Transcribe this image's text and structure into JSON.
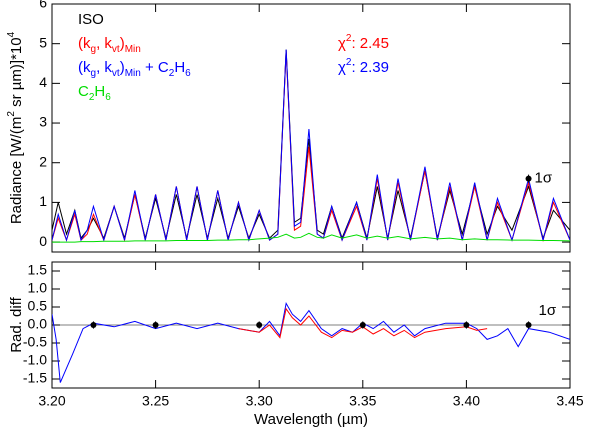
{
  "chart_data": [
    {
      "type": "line",
      "ylabel": [
        {
          "text": "Radiance [W/(m"
        },
        {
          "text": "2",
          "shift": "super"
        },
        {
          "text": " sr µm)]*10"
        },
        {
          "text": "4",
          "shift": "super"
        }
      ],
      "x": [
        3.2,
        3.203,
        3.207,
        3.211,
        3.214,
        3.217,
        3.22,
        3.225,
        3.23,
        3.235,
        3.24,
        3.245,
        3.25,
        3.255,
        3.26,
        3.265,
        3.27,
        3.275,
        3.28,
        3.285,
        3.29,
        3.295,
        3.3,
        3.305,
        3.309,
        3.313,
        3.317,
        3.32,
        3.324,
        3.328,
        3.331,
        3.335,
        3.34,
        3.347,
        3.352,
        3.357,
        3.362,
        3.367,
        3.373,
        3.38,
        3.386,
        3.392,
        3.398,
        3.404,
        3.41,
        3.415,
        3.422,
        3.43,
        3.437,
        3.442,
        3.45
      ],
      "series": [
        {
          "name": [
            {
              "text": "ISO"
            }
          ],
          "color": "#000000",
          "values": [
            0.3,
            1.0,
            0.2,
            0.8,
            0.1,
            0.3,
            0.6,
            0.1,
            0.9,
            0.1,
            1.2,
            0.1,
            1.1,
            0.1,
            1.2,
            0.1,
            1.2,
            0.1,
            1.1,
            0.1,
            0.9,
            0.1,
            0.7,
            0.1,
            0.3,
            4.85,
            0.5,
            0.6,
            2.6,
            0.3,
            0.2,
            0.9,
            0.1,
            1.0,
            0.1,
            1.4,
            0.1,
            1.3,
            0.1,
            1.8,
            0.1,
            1.3,
            0.2,
            1.4,
            0.2,
            0.9,
            0.3,
            1.4,
            0.1,
            0.8,
            0.3
          ]
        },
        {
          "name": [
            {
              "text": "(k"
            },
            {
              "text": "g",
              "shift": "sub"
            },
            {
              "text": ", k"
            },
            {
              "text": "vt",
              "shift": "sub"
            },
            {
              "text": ")"
            },
            {
              "text": "Min",
              "shift": "sub"
            }
          ],
          "color": "#ff0000",
          "chi2": 2.45,
          "values": [
            0.05,
            0.6,
            0.05,
            0.7,
            0.05,
            0.2,
            0.7,
            0.05,
            0.9,
            0.05,
            1.2,
            0.05,
            1.2,
            0.05,
            1.4,
            0.05,
            1.4,
            0.05,
            1.3,
            0.05,
            1.0,
            0.05,
            0.8,
            0.05,
            0.2,
            4.8,
            0.3,
            0.4,
            2.4,
            0.2,
            0.1,
            0.8,
            0.05,
            0.9,
            0.05,
            1.6,
            0.05,
            1.5,
            0.05,
            1.8,
            0.05,
            1.4,
            0.05,
            1.4,
            0.05,
            1.0,
            0.05,
            1.5,
            0.05,
            1.0,
            0.05
          ]
        },
        {
          "name": [
            {
              "text": "(k"
            },
            {
              "text": "g",
              "shift": "sub"
            },
            {
              "text": ", k"
            },
            {
              "text": "vt",
              "shift": "sub"
            },
            {
              "text": ")"
            },
            {
              "text": "Min",
              "shift": "sub"
            },
            {
              "text": " + C"
            },
            {
              "text": "2",
              "shift": "sub"
            },
            {
              "text": "H"
            },
            {
              "text": "6",
              "shift": "sub"
            }
          ],
          "color": "#0000ff",
          "chi2": 2.39,
          "values": [
            0.05,
            0.7,
            0.05,
            0.8,
            0.05,
            0.3,
            0.9,
            0.05,
            0.9,
            0.05,
            1.3,
            0.05,
            1.2,
            0.05,
            1.4,
            0.05,
            1.4,
            0.05,
            1.3,
            0.05,
            1.0,
            0.05,
            0.8,
            0.05,
            0.2,
            4.85,
            0.4,
            0.5,
            2.85,
            0.2,
            0.1,
            0.9,
            0.05,
            1.0,
            0.05,
            1.7,
            0.05,
            1.6,
            0.05,
            1.9,
            0.05,
            1.5,
            0.05,
            1.5,
            0.05,
            1.1,
            0.05,
            1.6,
            0.05,
            1.1,
            0.05
          ]
        },
        {
          "name": [
            {
              "text": "C"
            },
            {
              "text": "2",
              "shift": "sub"
            },
            {
              "text": "H"
            },
            {
              "text": "6",
              "shift": "sub"
            }
          ],
          "color": "#00dd00",
          "values": [
            0.0,
            0.0,
            0.0,
            0.0,
            0.01,
            0.01,
            0.01,
            0.02,
            0.02,
            0.02,
            0.03,
            0.03,
            0.03,
            0.03,
            0.04,
            0.04,
            0.04,
            0.04,
            0.05,
            0.05,
            0.06,
            0.06,
            0.08,
            0.1,
            0.12,
            0.2,
            0.1,
            0.12,
            0.22,
            0.12,
            0.1,
            0.18,
            0.1,
            0.18,
            0.1,
            0.15,
            0.1,
            0.14,
            0.08,
            0.12,
            0.08,
            0.1,
            0.06,
            0.08,
            0.06,
            0.06,
            0.05,
            0.05,
            0.04,
            0.04,
            0.03
          ]
        }
      ],
      "chi2_label": [
        {
          "text": "χ"
        },
        {
          "text": "2",
          "shift": "super"
        },
        {
          "text": ": "
        }
      ],
      "sigma": {
        "x": 3.43,
        "value": 1.6,
        "error": 0.1,
        "label": "1σ"
      },
      "xlim": [
        3.2,
        3.45
      ],
      "xticks": [
        {
          "value": 3.2,
          "label": "3.20"
        },
        3.25,
        {
          "value": 3.3,
          "label": "3.30"
        },
        3.35,
        {
          "value": 3.4,
          "label": "3.40"
        },
        3.45
      ],
      "ylim": [
        -0.25,
        6
      ],
      "yticks": [
        0,
        1,
        2,
        3,
        4,
        5,
        6
      ]
    },
    {
      "type": "line",
      "xlabel": "Wavelength (µm)",
      "ylabel": "Rad. diff",
      "x": [
        3.2,
        3.202,
        3.204,
        3.207,
        3.21,
        3.215,
        3.22,
        3.23,
        3.24,
        3.25,
        3.26,
        3.27,
        3.28,
        3.29,
        3.3,
        3.305,
        3.31,
        3.313,
        3.316,
        3.32,
        3.324,
        3.33,
        3.335,
        3.34,
        3.345,
        3.35,
        3.355,
        3.36,
        3.365,
        3.37,
        3.375,
        3.38,
        3.39,
        3.4,
        3.405,
        3.41,
        3.415,
        3.42,
        3.425,
        3.43,
        3.44,
        3.45
      ],
      "series": [
        {
          "color": "#0000ff",
          "values": [
            0.3,
            -0.4,
            -1.6,
            -1.2,
            -0.8,
            -0.1,
            0.05,
            -0.05,
            0.1,
            -0.1,
            0.05,
            -0.1,
            0.05,
            -0.1,
            -0.2,
            0.1,
            -0.3,
            0.6,
            0.3,
            0.1,
            0.4,
            -0.1,
            -0.3,
            -0.1,
            -0.2,
            0.05,
            -0.1,
            0.1,
            -0.2,
            0.0,
            -0.3,
            -0.1,
            0.05,
            0.05,
            -0.1,
            -0.4,
            -0.3,
            -0.1,
            -0.6,
            -0.1,
            -0.2,
            -0.4
          ]
        },
        {
          "color": "#ff0000",
          "values": [
            null,
            null,
            null,
            null,
            null,
            null,
            null,
            null,
            null,
            null,
            null,
            null,
            null,
            -0.1,
            -0.2,
            0.0,
            -0.35,
            0.45,
            0.2,
            0.0,
            0.25,
            -0.2,
            -0.35,
            -0.15,
            -0.2,
            -0.05,
            -0.25,
            -0.1,
            -0.3,
            -0.15,
            -0.35,
            -0.2,
            -0.1,
            -0.05,
            -0.15,
            -0.1,
            null,
            null,
            null,
            null,
            null,
            null
          ]
        }
      ],
      "error_points": {
        "x": [
          3.22,
          3.25,
          3.3,
          3.35,
          3.4,
          3.43
        ],
        "values": [
          0,
          0,
          0,
          0,
          0,
          0
        ],
        "errors": [
          0.1,
          0.1,
          0.1,
          0.1,
          0.1,
          0.1
        ]
      },
      "sigma_label": "1σ",
      "hline": 0,
      "xlim": [
        3.2,
        3.45
      ],
      "xticks": [
        {
          "value": 3.2,
          "label": "3.20"
        },
        3.25,
        {
          "value": 3.3,
          "label": "3.30"
        },
        3.35,
        {
          "value": 3.4,
          "label": "3.40"
        },
        3.45
      ],
      "ylim": [
        -1.75,
        1.75
      ],
      "yticks": [
        1.5,
        {
          "value": 1,
          "label": "1.0"
        },
        0.5,
        {
          "value": 0,
          "label": "0.0"
        },
        -0.5,
        {
          "value": -1,
          "label": "-1.0"
        },
        -1.5
      ]
    }
  ]
}
